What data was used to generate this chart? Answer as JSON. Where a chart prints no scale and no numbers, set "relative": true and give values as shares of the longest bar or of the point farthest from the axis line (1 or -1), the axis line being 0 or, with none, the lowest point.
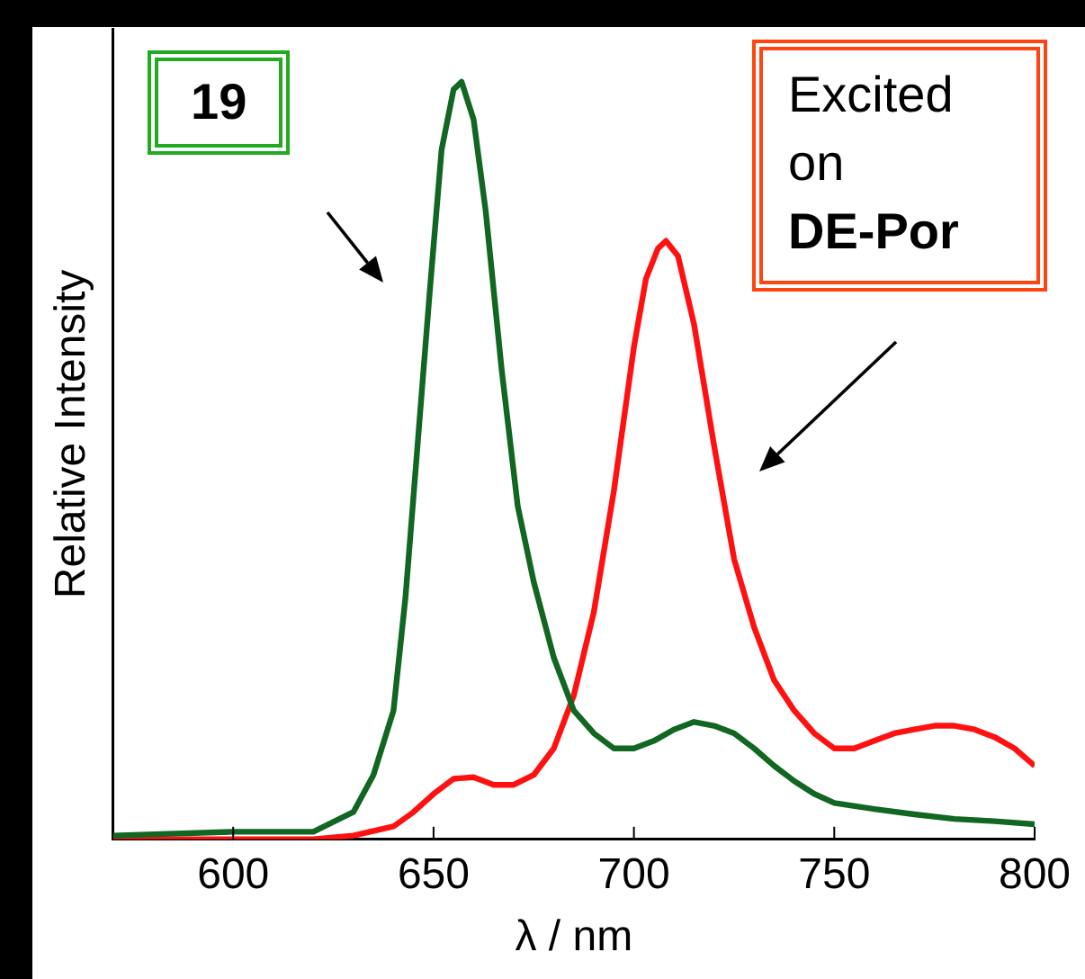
{
  "chart_data": {
    "type": "line",
    "relative": true,
    "xlabel": "λ / nm",
    "ylabel": "Relative Intensity",
    "xlim": [
      570,
      800
    ],
    "xticks": [
      600,
      650,
      700,
      750,
      800
    ],
    "grid": false,
    "legend": false,
    "marker": "none",
    "line_style": "solid",
    "x": [
      570,
      600,
      620,
      630,
      635,
      640,
      643,
      646,
      649,
      652,
      655,
      657,
      660,
      663,
      667,
      671,
      675,
      680,
      685,
      690,
      695,
      700,
      705,
      710,
      715,
      720,
      725,
      730,
      735,
      740,
      745,
      750,
      760,
      770,
      780,
      790,
      800
    ],
    "series": [
      {
        "color": "#116622",
        "values": [
          0.005,
          0.01,
          0.01,
          0.036,
          0.085,
          0.17,
          0.32,
          0.52,
          0.72,
          0.91,
          0.99,
          1.0,
          0.95,
          0.83,
          0.62,
          0.44,
          0.34,
          0.24,
          0.17,
          0.14,
          0.12,
          0.12,
          0.13,
          0.145,
          0.155,
          0.15,
          0.14,
          0.12,
          0.097,
          0.077,
          0.06,
          0.048,
          0.04,
          0.033,
          0.027,
          0.024,
          0.02
        ]
      },
      {
        "color": "#ff1111",
        "x": [
          570,
          600,
          620,
          630,
          640,
          645,
          650,
          655,
          660,
          665,
          670,
          675,
          680,
          685,
          690,
          695,
          700,
          703,
          706,
          708,
          711,
          715,
          720,
          725,
          730,
          735,
          740,
          745,
          750,
          755,
          760,
          765,
          770,
          775,
          780,
          785,
          790,
          795,
          800
        ],
        "values": [
          0,
          0,
          0,
          0.005,
          0.017,
          0.036,
          0.06,
          0.08,
          0.082,
          0.072,
          0.072,
          0.085,
          0.12,
          0.19,
          0.3,
          0.46,
          0.65,
          0.74,
          0.78,
          0.79,
          0.77,
          0.68,
          0.52,
          0.37,
          0.28,
          0.21,
          0.17,
          0.14,
          0.12,
          0.12,
          0.13,
          0.14,
          0.145,
          0.15,
          0.15,
          0.145,
          0.135,
          0.12,
          0.097
        ]
      }
    ],
    "annotations": [
      "19",
      "Excited on DE-Por"
    ]
  }
}
